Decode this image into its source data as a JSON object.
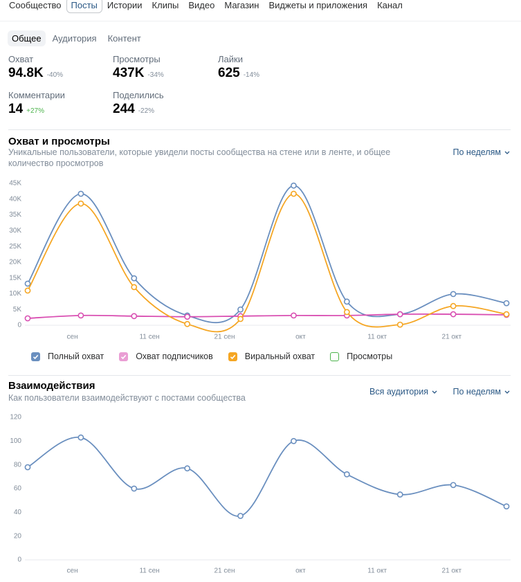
{
  "nav": {
    "tabs": [
      "Сообщество",
      "Посты",
      "Истории",
      "Клипы",
      "Видео",
      "Магазин",
      "Виджеты и приложения",
      "Канал"
    ],
    "active": 1
  },
  "subtabs": {
    "tabs": [
      "Общее",
      "Аудитория",
      "Контент"
    ],
    "active": 0
  },
  "stats": [
    {
      "label": "Охват",
      "value": "94.8K",
      "change": "-40%"
    },
    {
      "label": "Просмотры",
      "value": "437K",
      "change": "-34%"
    },
    {
      "label": "Лайки",
      "value": "625",
      "change": "-14%"
    },
    {
      "label": "Комментарии",
      "value": "14",
      "change": "+27%"
    },
    {
      "label": "Поделились",
      "value": "244",
      "change": "-22%"
    }
  ],
  "chart_data": [
    {
      "type": "line",
      "title": "Охват и просмотры",
      "subtitle": "Уникальные пользователи, которые увидели посты сообщества на стене или в ленте, и общее количество просмотров",
      "period": "По неделям",
      "ylim": [
        0,
        45000
      ],
      "yticks": [
        0,
        {
          "value": 5000,
          "label": "5K"
        },
        {
          "value": 10000,
          "label": "10K"
        },
        {
          "value": 15000,
          "label": "15K"
        },
        {
          "value": 20000,
          "label": "20K"
        },
        {
          "value": 25000,
          "label": "25K"
        },
        {
          "value": 30000,
          "label": "30K"
        },
        {
          "value": 35000,
          "label": "35K"
        },
        {
          "value": 40000,
          "label": "40K"
        },
        {
          "value": 45000,
          "label": "45K"
        }
      ],
      "xlim": [
        0,
        9
      ],
      "xticks": [
        {
          "value": 0.84,
          "label": "сен"
        },
        {
          "value": 2.29,
          "label": "11 сен"
        },
        {
          "value": 3.7,
          "label": "21 сен"
        },
        {
          "value": 5.13,
          "label": "окт"
        },
        {
          "value": 6.57,
          "label": "11 окт"
        },
        {
          "value": 7.97,
          "label": "21 окт"
        }
      ],
      "series": [
        {
          "name": "Полный охват",
          "color": "#6a8fbf",
          "checked": true,
          "values": [
            13200,
            41700,
            14900,
            3100,
            5000,
            44300,
            7500,
            3500,
            9900,
            7000
          ]
        },
        {
          "name": "Охват подписчиков",
          "color": "#d94fb2",
          "checked": true,
          "values": [
            2200,
            3100,
            2900,
            2700,
            2900,
            3100,
            3100,
            3500,
            3500,
            3300
          ]
        },
        {
          "name": "Виральный охват",
          "color": "#f5a623",
          "checked": true,
          "values": [
            11000,
            38600,
            12100,
            400,
            2000,
            41700,
            4200,
            200,
            6100,
            3500
          ]
        },
        {
          "name": "Просмотры",
          "color": "#4bb34b",
          "checked": false,
          "values": [
            null,
            null,
            null,
            null,
            null,
            null,
            null,
            null,
            null,
            null
          ]
        }
      ]
    },
    {
      "type": "line",
      "title": "Взаимодействия",
      "subtitle": "Как пользователи взаимодействуют с постами сообщества",
      "audience": "Вся аудитория",
      "period": "По неделям",
      "ylim": [
        0,
        120
      ],
      "yticks": [
        0,
        20,
        40,
        60,
        80,
        100,
        120
      ],
      "xlim": [
        0,
        9
      ],
      "xticks": [
        {
          "value": 0.84,
          "label": "сен"
        },
        {
          "value": 2.29,
          "label": "11 сен"
        },
        {
          "value": 3.7,
          "label": "21 сен"
        },
        {
          "value": 5.13,
          "label": "окт"
        },
        {
          "value": 6.57,
          "label": "11 окт"
        },
        {
          "value": 7.97,
          "label": "21 окт"
        }
      ],
      "series": [
        {
          "name": "Взаимодействия",
          "color": "#6a8fbf",
          "values": [
            78,
            103,
            60,
            77,
            37,
            100,
            72,
            55,
            63,
            45
          ]
        }
      ]
    }
  ]
}
